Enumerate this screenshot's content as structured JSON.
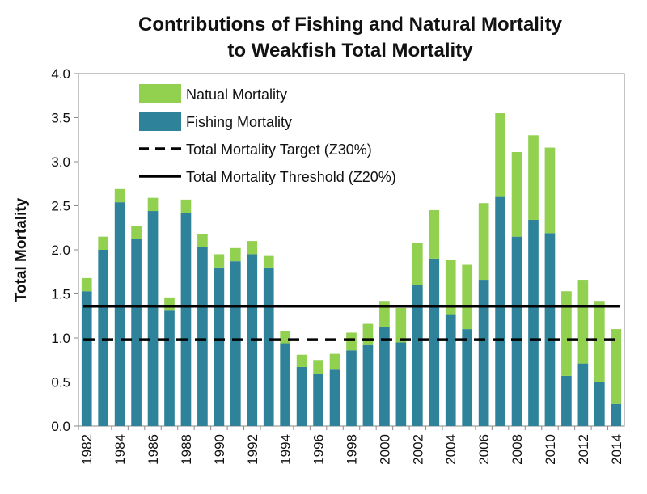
{
  "chart_data": {
    "type": "bar",
    "stacked": true,
    "title_line1": "Contributions of Fishing and Natural Mortality",
    "title_line2": "to Weakfish Total Mortality",
    "xlabel": "",
    "ylabel": "Total Mortality",
    "ylim": [
      0,
      4.0
    ],
    "yticks": [
      "0.0",
      "0.5",
      "1.0",
      "1.5",
      "2.0",
      "2.5",
      "3.0",
      "3.5",
      "4.0"
    ],
    "x": [
      1982,
      1983,
      1984,
      1985,
      1986,
      1987,
      1988,
      1989,
      1990,
      1991,
      1992,
      1993,
      1994,
      1995,
      1996,
      1997,
      1998,
      1999,
      2000,
      2001,
      2002,
      2003,
      2004,
      2005,
      2006,
      2007,
      2008,
      2009,
      2010,
      2011,
      2012,
      2013,
      2014
    ],
    "xtick_labels": [
      "1982",
      "1984",
      "1986",
      "1988",
      "1990",
      "1992",
      "1994",
      "1996",
      "1998",
      "2000",
      "2002",
      "2004",
      "2006",
      "2008",
      "2010",
      "2012",
      "2014"
    ],
    "series": [
      {
        "name": "Fishing Mortality",
        "color": "#2e8299",
        "values": [
          1.53,
          2.0,
          2.54,
          2.12,
          2.44,
          1.31,
          2.42,
          2.03,
          1.8,
          1.87,
          1.95,
          1.8,
          0.94,
          0.67,
          0.59,
          0.64,
          0.86,
          0.92,
          1.12,
          0.95,
          1.6,
          1.9,
          1.27,
          1.1,
          1.66,
          2.6,
          2.15,
          2.34,
          2.19,
          0.57,
          0.71,
          0.5,
          0.25
        ]
      },
      {
        "name": "Natual Mortality",
        "color": "#92d050",
        "values": [
          0.15,
          0.15,
          0.15,
          0.15,
          0.15,
          0.15,
          0.15,
          0.15,
          0.15,
          0.15,
          0.15,
          0.13,
          0.14,
          0.14,
          0.16,
          0.18,
          0.2,
          0.24,
          0.3,
          0.39,
          0.48,
          0.55,
          0.62,
          0.73,
          0.87,
          0.95,
          0.96,
          0.96,
          0.97,
          0.96,
          0.95,
          0.92,
          0.85
        ]
      }
    ],
    "reference_lines": [
      {
        "name": "Total Mortality Target (Z30%)",
        "value": 0.98,
        "style": "dashed",
        "color": "#000000"
      },
      {
        "name": "Total Mortality Threshold (Z20%)",
        "value": 1.36,
        "style": "solid",
        "color": "#000000"
      }
    ],
    "legend": {
      "placement": "top-left",
      "entries": [
        {
          "label": "Natual Mortality",
          "kind": "box",
          "color": "#92d050"
        },
        {
          "label": "Fishing Mortality",
          "kind": "box",
          "color": "#2e8299"
        },
        {
          "label": "Total Mortality Target (Z30%)",
          "kind": "dashed-line",
          "color": "#000000"
        },
        {
          "label": "Total Mortality Threshold (Z20%)",
          "kind": "solid-line",
          "color": "#000000"
        }
      ]
    },
    "grid": false
  }
}
